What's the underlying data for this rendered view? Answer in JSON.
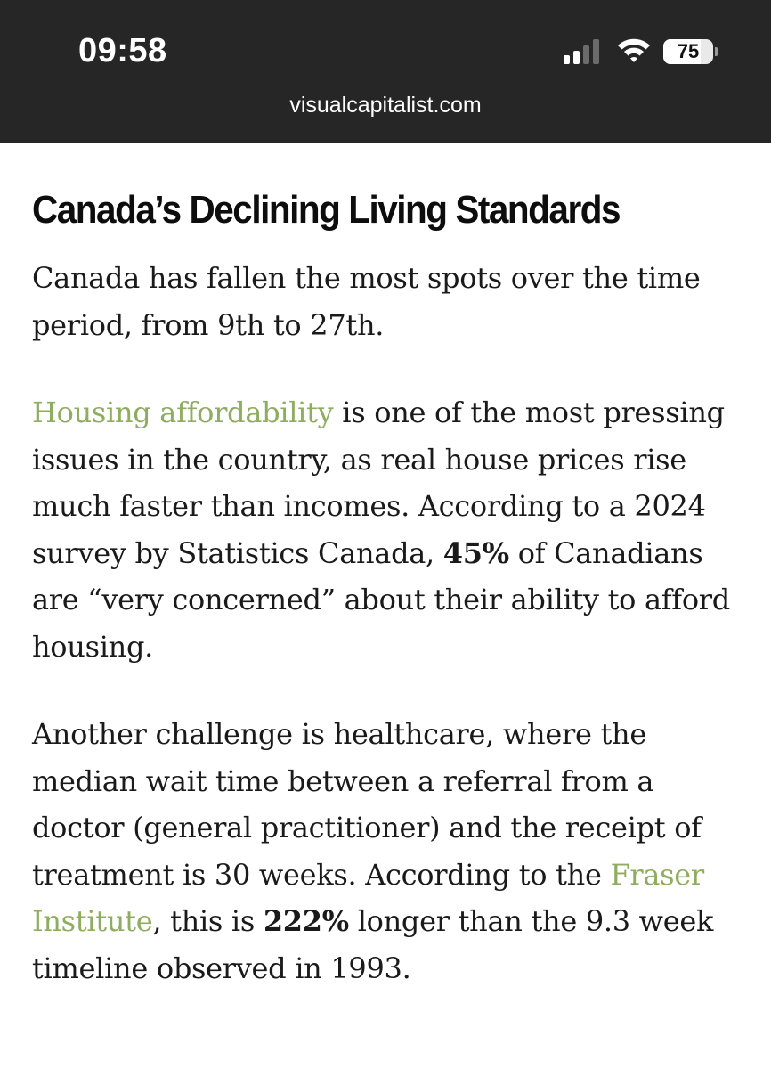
{
  "status_bar": {
    "time": "09:58",
    "battery_level": 75,
    "battery_label": "75",
    "signal_bars_active": 2,
    "signal_bars_total": 4,
    "icons": [
      "signal-icon",
      "wifi-icon",
      "battery-icon"
    ]
  },
  "browser": {
    "url": "visualcapitalist.com"
  },
  "article": {
    "heading": "Canada’s Declining Living Standards",
    "p1": "Canada has fallen the most spots over the time period, from 9th to 27th.",
    "p2": {
      "link_housing": "Housing affordability",
      "t1": " is one of the most pressing issues in the country, as real house prices rise much faster than incomes. According to a 2024 survey by Statistics Canada, ",
      "bold_45": "45%",
      "t2": " of Canadians are “very concerned” about their ability to afford housing."
    },
    "p3": {
      "t1": "Another challenge is healthcare, where the median wait time between a referral from a doctor (general practitioner) and the receipt of treatment is 30 weeks. According to the ",
      "link_fraser": "Fraser Institute",
      "t2": ", this is ",
      "bold_222": "222%",
      "t3": " longer than the 9.3 week timeline observed in 1993."
    }
  },
  "colors": {
    "status_bar_bg": "#262626",
    "link": "#8fad60",
    "text": "#1a1a1a"
  }
}
